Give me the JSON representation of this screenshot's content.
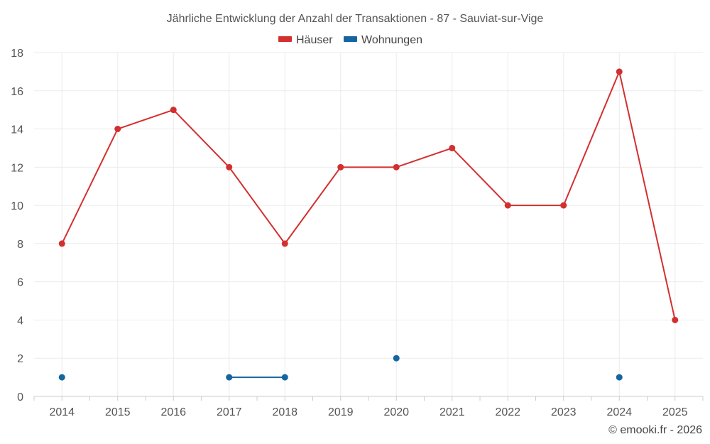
{
  "chart_data": {
    "type": "line",
    "title": "Jährliche Entwicklung der Anzahl der Transaktionen - 87 - Sauviat-sur-Vige",
    "categories": [
      "2014",
      "2015",
      "2016",
      "2017",
      "2018",
      "2019",
      "2020",
      "2021",
      "2022",
      "2023",
      "2024",
      "2025"
    ],
    "series": [
      {
        "name": "Häuser",
        "color": "#d32f2f",
        "values": [
          8,
          14,
          15,
          12,
          8,
          12,
          12,
          13,
          10,
          10,
          17,
          4
        ]
      },
      {
        "name": "Wohnungen",
        "color": "#1565a0",
        "values": [
          1,
          null,
          null,
          1,
          1,
          null,
          2,
          null,
          null,
          null,
          1,
          null
        ]
      }
    ],
    "ylim": [
      0,
      18
    ],
    "yticks": [
      0,
      2,
      4,
      6,
      8,
      10,
      12,
      14,
      16,
      18
    ],
    "xlabel": "",
    "ylabel": "",
    "grid": true,
    "legend": "top-center"
  },
  "credit": "© emooki.fr - 2026"
}
